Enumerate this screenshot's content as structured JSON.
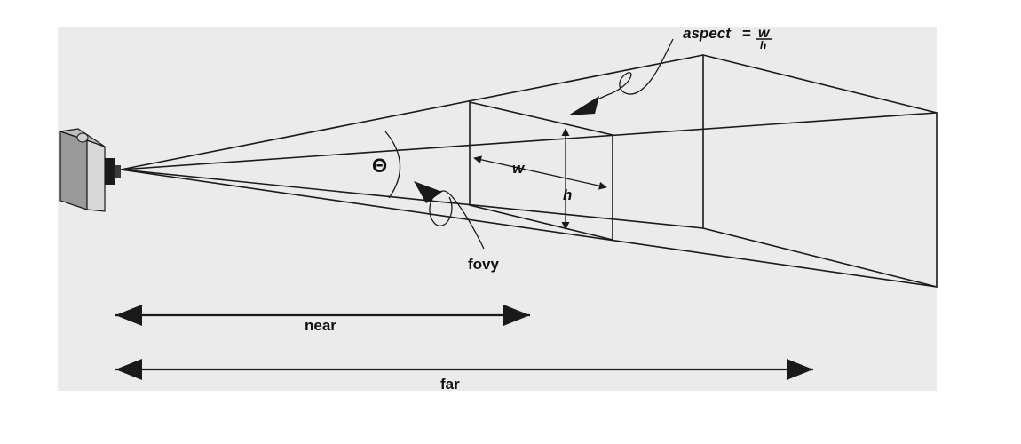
{
  "labels": {
    "aspect_prefix": "aspect",
    "aspect_equals": "=",
    "aspect_numerator": "w",
    "aspect_denominator": "h",
    "theta": "Θ",
    "w": "w",
    "h": "h",
    "fovy": "fovy",
    "near": "near",
    "far": "far"
  },
  "colors": {
    "ink": "#1a1a1a",
    "panel": "#ebebeb",
    "camera_light": "#d8d8d8",
    "camera_dark": "#9a9a9a"
  }
}
